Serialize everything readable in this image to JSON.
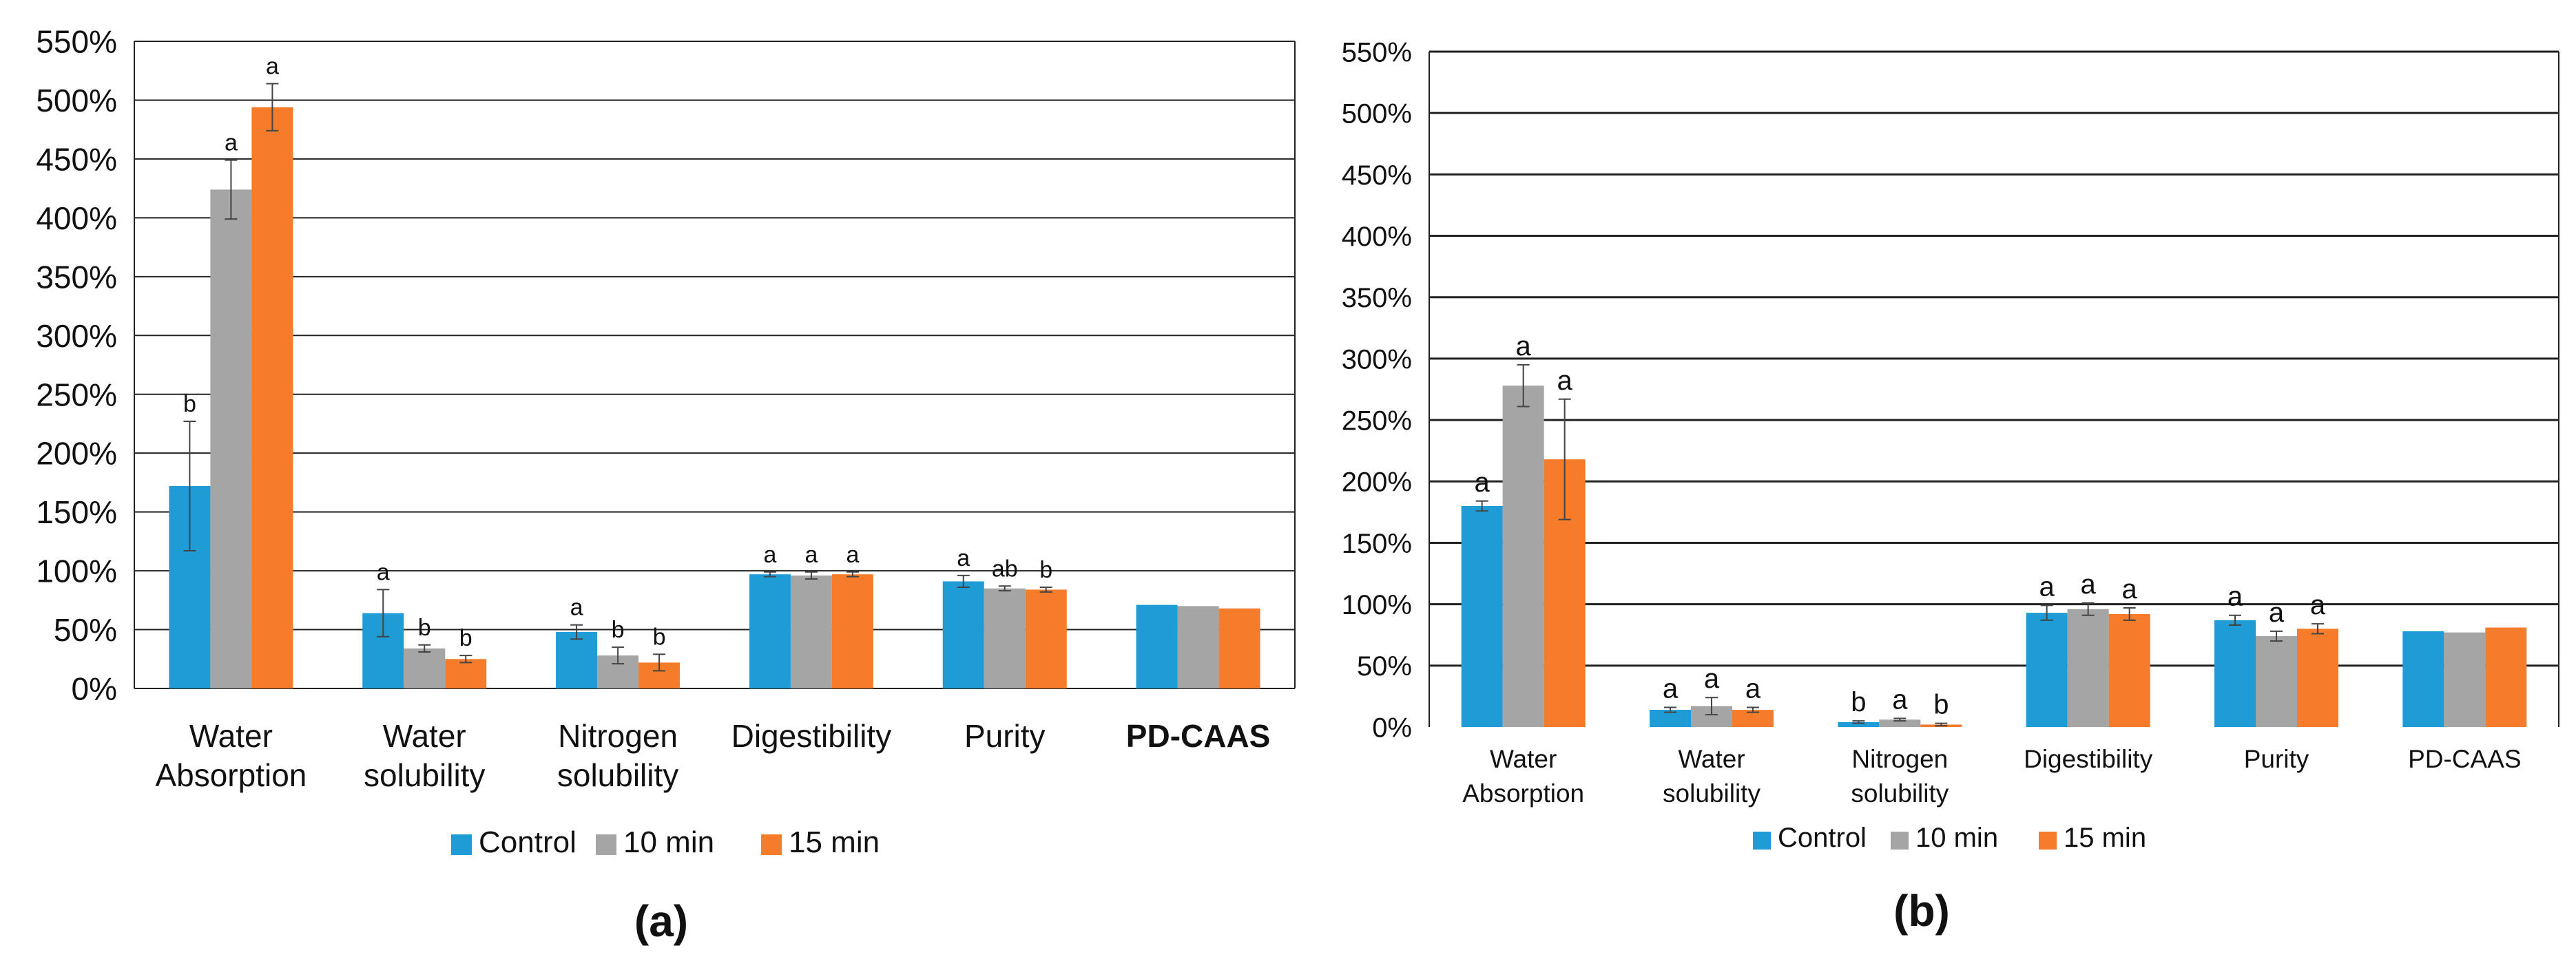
{
  "colors": {
    "control": "#1f9bd6",
    "min10": "#a5a5a5",
    "min15": "#f47c2a",
    "grid": "#222222",
    "text": "#111111",
    "errorbar": "#444444"
  },
  "chart_data": [
    {
      "panel": "(a)",
      "type": "bar",
      "categories": [
        [
          "Water",
          "Absorption"
        ],
        [
          "Water",
          "solubility"
        ],
        [
          "Nitrogen",
          "solubility"
        ],
        [
          "Digestibility"
        ],
        [
          "Purity"
        ],
        [
          "PD-CAAS"
        ]
      ],
      "series": [
        {
          "name": "Control",
          "values": [
            172,
            64,
            48,
            97,
            91,
            71
          ],
          "errors": [
            55,
            20,
            6,
            2,
            5,
            0
          ],
          "letters": [
            "b",
            "a",
            "a",
            "a",
            "a",
            ""
          ]
        },
        {
          "name": "10 min",
          "values": [
            424,
            34,
            28,
            96,
            85,
            70
          ],
          "errors": [
            25,
            3,
            7,
            3,
            2,
            0
          ],
          "letters": [
            "a",
            "b",
            "b",
            "a",
            "ab",
            ""
          ]
        },
        {
          "name": "15 min",
          "values": [
            494,
            25,
            22,
            97,
            84,
            68
          ],
          "errors": [
            20,
            3,
            7,
            2,
            2,
            0
          ],
          "letters": [
            "a",
            "b",
            "b",
            "a",
            "b",
            ""
          ]
        }
      ],
      "ylim": [
        0,
        550
      ],
      "yticks": [
        "0%",
        "50%",
        "100%",
        "150%",
        "200%",
        "250%",
        "300%",
        "350%",
        "400%",
        "450%",
        "500%",
        "550%"
      ],
      "grid": true,
      "legend": "bottom"
    },
    {
      "panel": "(b)",
      "type": "bar",
      "categories": [
        [
          "Water",
          "Absorption"
        ],
        [
          "Water",
          "solubility"
        ],
        [
          "Nitrogen",
          "solubility"
        ],
        [
          "Digestibility"
        ],
        [
          "Purity"
        ],
        [
          "PD-CAAS"
        ]
      ],
      "series": [
        {
          "name": "Control",
          "values": [
            180,
            14,
            4,
            93,
            87,
            78
          ],
          "errors": [
            4,
            2,
            1,
            6,
            4,
            0
          ],
          "letters": [
            "a",
            "a",
            "b",
            "a",
            "a",
            ""
          ]
        },
        {
          "name": "10 min",
          "values": [
            278,
            17,
            6,
            96,
            74,
            77
          ],
          "errors": [
            17,
            7,
            1,
            5,
            4,
            0
          ],
          "letters": [
            "a",
            "a",
            "a",
            "a",
            "a",
            ""
          ]
        },
        {
          "name": "15 min",
          "values": [
            218,
            14,
            2,
            92,
            80,
            81
          ],
          "errors": [
            49,
            2,
            1,
            5,
            4,
            0
          ],
          "letters": [
            "a",
            "a",
            "b",
            "a",
            "a",
            ""
          ]
        }
      ],
      "ylim": [
        0,
        550
      ],
      "yticks": [
        "0%",
        "50%",
        "100%",
        "150%",
        "200%",
        "250%",
        "300%",
        "350%",
        "400%",
        "450%",
        "500%",
        "550%"
      ],
      "grid": true,
      "legend": "bottom"
    }
  ]
}
